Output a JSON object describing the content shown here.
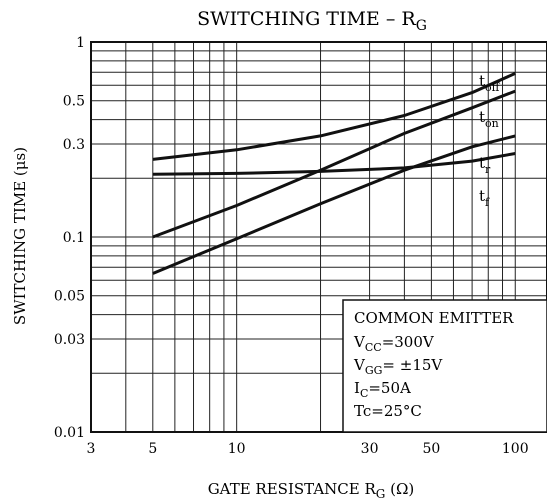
{
  "chart_data": {
    "type": "line",
    "title": "SWITCHING TIME",
    "title_dash": "–",
    "title_symbol": {
      "main": "R",
      "sub": "G"
    },
    "xlabel": {
      "text": "GATE RESISTANCE",
      "symbol": "R",
      "sub": "G",
      "unit": "(Ω)"
    },
    "ylabel": "SWITCHING TIME (μs)",
    "x_scale": "log",
    "y_scale": "log",
    "xlim": [
      3,
      130
    ],
    "ylim": [
      0.01,
      1
    ],
    "x_ticks": [
      {
        "value": 3,
        "label": "3"
      },
      {
        "value": 5,
        "label": "5"
      },
      {
        "value": 10,
        "label": "10"
      },
      {
        "value": 30,
        "label": "30"
      },
      {
        "value": 50,
        "label": "50"
      },
      {
        "value": 100,
        "label": "100"
      }
    ],
    "y_ticks": [
      {
        "value": 0.01,
        "label": "0.01"
      },
      {
        "value": 0.03,
        "label": "0.03"
      },
      {
        "value": 0.05,
        "label": "0.05"
      },
      {
        "value": 0.1,
        "label": "0.1"
      },
      {
        "value": 0.3,
        "label": "0.3"
      },
      {
        "value": 0.5,
        "label": "0.5"
      },
      {
        "value": 1,
        "label": "1"
      }
    ],
    "grid": true,
    "series": [
      {
        "name": "t",
        "sub": "off",
        "x": [
          5,
          10,
          20,
          40,
          70,
          100
        ],
        "y": [
          0.25,
          0.28,
          0.33,
          0.42,
          0.55,
          0.69
        ]
      },
      {
        "name": "t",
        "sub": "on",
        "x": [
          5,
          10,
          20,
          40,
          70,
          100
        ],
        "y": [
          0.1,
          0.145,
          0.22,
          0.34,
          0.46,
          0.56
        ]
      },
      {
        "name": "t",
        "sub": "r",
        "x": [
          5,
          10,
          20,
          40,
          70,
          100
        ],
        "y": [
          0.065,
          0.098,
          0.148,
          0.22,
          0.29,
          0.33
        ]
      },
      {
        "name": "t",
        "sub": "f",
        "x": [
          5,
          10,
          20,
          40,
          70,
          100
        ],
        "y": [
          0.21,
          0.212,
          0.217,
          0.226,
          0.245,
          0.268
        ]
      }
    ],
    "conditions_title": "COMMON EMITTER",
    "conditions": [
      {
        "main": "V",
        "sub": "CC",
        "value": "=300V"
      },
      {
        "main": "V",
        "sub": "GG",
        "value": "= ±15V"
      },
      {
        "main": "I",
        "sub": "C",
        "value": "=50A"
      },
      {
        "main": "Tc",
        "sub": "",
        "value": "=25°C"
      }
    ]
  }
}
